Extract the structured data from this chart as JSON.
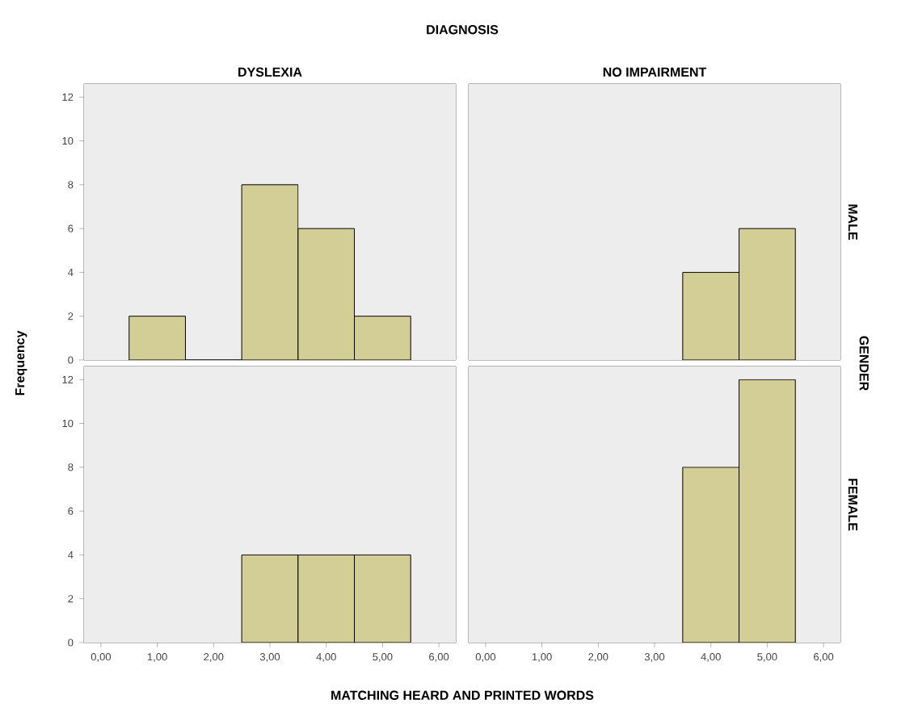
{
  "chart_data": [
    {
      "type": "histogram",
      "title": "DYSLEXIA",
      "annotations": [
        "DIAGNOSIS"
      ],
      "bins": [
        0.5,
        1.5,
        2.5,
        3.5,
        4.5,
        5.5
      ],
      "values": [
        2,
        0,
        8,
        6,
        2
      ],
      "color": "#d3ce96",
      "xlim": [
        -0.3,
        6.3
      ],
      "ylim": [
        0,
        12.6
      ],
      "yticks": [
        0,
        2,
        4,
        6,
        8,
        10,
        12
      ],
      "tick_labels": "y"
    },
    {
      "type": "histogram",
      "title": "NO IMPAIRMENT",
      "y2label": "MALE",
      "annotations": [
        "GENDER"
      ],
      "bins": [
        3.5,
        4.5,
        5.5
      ],
      "values": [
        4,
        6
      ],
      "color": "#d3ce96",
      "xlim": [
        -0.3,
        6.3
      ],
      "ylim": [
        0,
        12.6
      ],
      "tick_labels": false
    },
    {
      "type": "histogram",
      "ylabel": "Frequency",
      "xlabel": "MATCHING HEARD AND PRINTED WORDS",
      "bins": [
        2.5,
        3.5,
        4.5,
        5.5
      ],
      "values": [
        4,
        4,
        4
      ],
      "color": "#d3ce96",
      "xlim": [
        -0.3,
        6.3
      ],
      "ylim": [
        0,
        12.6
      ],
      "xticks": [
        {
          "value": 0,
          "label": "0,00"
        },
        {
          "value": 1,
          "label": "1,00"
        },
        {
          "value": 2,
          "label": "2,00"
        },
        {
          "value": 3,
          "label": "3,00"
        },
        {
          "value": 4,
          "label": "4,00"
        },
        {
          "value": 5,
          "label": "5,00"
        },
        {
          "value": 6,
          "label": "6,00"
        }
      ],
      "yticks": [
        0,
        2,
        4,
        6,
        8,
        10,
        12
      ]
    },
    {
      "type": "histogram",
      "y2label": "FEMALE",
      "bins": [
        3.5,
        4.5,
        5.5
      ],
      "values": [
        8,
        12
      ],
      "color": "#d3ce96",
      "xlim": [
        -0.3,
        6.3
      ],
      "ylim": [
        0,
        12.6
      ],
      "xticks": [
        {
          "value": 0,
          "label": "0,00"
        },
        {
          "value": 1,
          "label": "1,00"
        },
        {
          "value": 2,
          "label": "2,00"
        },
        {
          "value": 3,
          "label": "3,00"
        },
        {
          "value": 4,
          "label": "4,00"
        },
        {
          "value": 5,
          "label": "5,00"
        },
        {
          "value": 6,
          "label": "6,00"
        }
      ],
      "tick_labels": "x"
    }
  ]
}
